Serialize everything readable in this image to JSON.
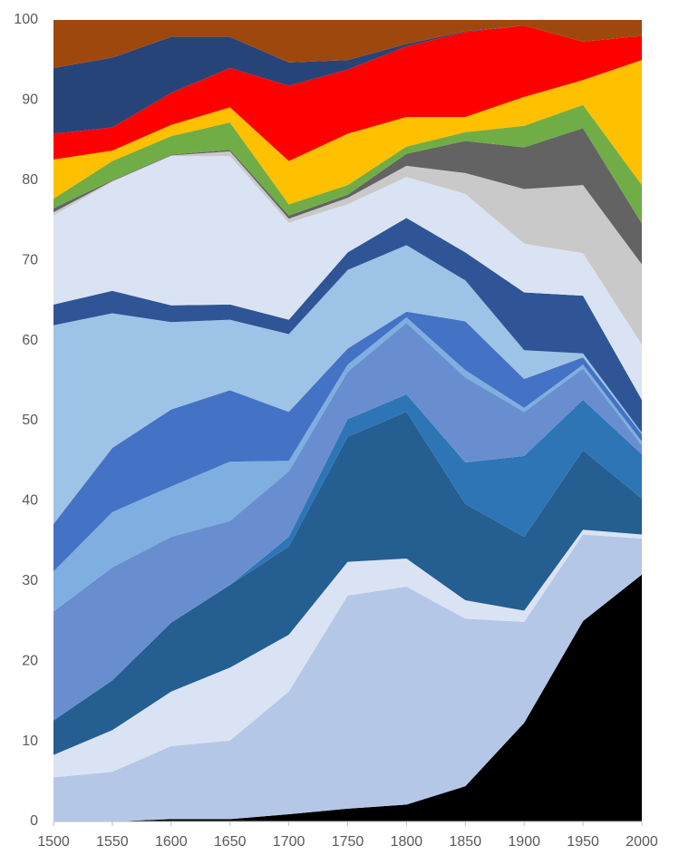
{
  "chart_data": {
    "type": "stacked_area",
    "x": [
      1500,
      1550,
      1600,
      1650,
      1700,
      1750,
      1800,
      1850,
      1900,
      1950,
      2000
    ],
    "xlim": [
      1500,
      2000
    ],
    "xticks": [
      1500,
      1550,
      1600,
      1650,
      1700,
      1750,
      1800,
      1850,
      1900,
      1950,
      2000
    ],
    "ylim": [
      0,
      100
    ],
    "yticks": [
      0,
      10,
      20,
      30,
      40,
      50,
      60,
      70,
      80,
      90,
      100
    ],
    "grid": false,
    "series": [
      {
        "color": "#000000",
        "values": [
          0,
          0,
          0.3,
          0.3,
          0.9,
          1.6,
          2.1,
          4.4,
          12.3,
          25,
          30.8
        ]
      },
      {
        "color": "#b4c7e7",
        "values": [
          5.5,
          6.2,
          9.1,
          9.8,
          15.3,
          26.6,
          27.2,
          20.9,
          12.6,
          10.8,
          4.5
        ]
      },
      {
        "color": "#dae3f3",
        "values": [
          2.8,
          5.2,
          6.8,
          9.1,
          7.1,
          4.2,
          3.5,
          2.3,
          1.4,
          0.6,
          0.5
        ]
      },
      {
        "color": "#255e91",
        "values": [
          4.3,
          6.2,
          8.6,
          10.3,
          11,
          15.6,
          18.3,
          12,
          9.2,
          9.9,
          4.5
        ]
      },
      {
        "color": "#2e75b6",
        "values": [
          0,
          0,
          0,
          0,
          1.2,
          2.2,
          2.2,
          5.2,
          10.1,
          6.3,
          5.5
        ]
      },
      {
        "color": "#698ed0",
        "values": [
          13.6,
          14.1,
          10.7,
          8,
          8.2,
          5.9,
          8.9,
          10.6,
          5.5,
          3.9,
          1.1
        ]
      },
      {
        "color": "#7faee0",
        "values": [
          5,
          6.9,
          6.3,
          7.4,
          1.3,
          0.9,
          0.7,
          0.9,
          0.5,
          0.5,
          0.5
        ]
      },
      {
        "color": "#4472c4",
        "values": [
          5.9,
          8,
          9.6,
          8.9,
          6.1,
          2,
          0.7,
          6.1,
          3.6,
          0.9,
          0.9
        ]
      },
      {
        "color": "#9dc3e6",
        "values": [
          24.8,
          16.8,
          10.9,
          8.8,
          9.7,
          9.8,
          8.3,
          5.1,
          3.6,
          0.5,
          0.2
        ]
      },
      {
        "color": "#2f5597",
        "values": [
          2.6,
          2.8,
          2.1,
          1.9,
          1.8,
          2.2,
          3.4,
          3.5,
          7.2,
          7.2,
          4.1
        ]
      },
      {
        "color": "#dae3f3",
        "values": [
          11.1,
          13.6,
          18.6,
          18.5,
          12.1,
          6,
          5.1,
          7.3,
          6.1,
          5.3,
          6.9
        ]
      },
      {
        "color": "#c9c9c9",
        "values": [
          0.4,
          0.1,
          0.1,
          0.6,
          0.5,
          0.8,
          1.4,
          2.6,
          6.8,
          8.5,
          10
        ]
      },
      {
        "color": "#636363",
        "values": [
          0.5,
          0.1,
          0.1,
          0.2,
          0.4,
          0.4,
          1.5,
          4,
          5.2,
          7.1,
          5.1
        ]
      },
      {
        "color": "#70ad47",
        "values": [
          1.2,
          2.4,
          2.3,
          3.4,
          1.4,
          1.2,
          0.9,
          1.1,
          2.7,
          2.9,
          4.8
        ]
      },
      {
        "color": "#ffc000",
        "values": [
          4.9,
          1.3,
          1.4,
          1.9,
          5.4,
          6.4,
          3.7,
          1.9,
          3.6,
          3.1,
          15.6
        ]
      },
      {
        "color": "#ff0000",
        "values": [
          3.2,
          2.9,
          4,
          4.9,
          9.4,
          8,
          8.8,
          10.6,
          8.9,
          4.8,
          3
        ]
      },
      {
        "color": "#264478",
        "values": [
          8.2,
          8.7,
          7,
          3.9,
          2.9,
          1.2,
          0.3,
          0.1,
          0,
          0,
          0
        ]
      },
      {
        "color": "#9e480e",
        "values": [
          6,
          4.7,
          2.1,
          2.1,
          5.3,
          5,
          3,
          1.4,
          0.7,
          2.7,
          2
        ]
      }
    ]
  }
}
